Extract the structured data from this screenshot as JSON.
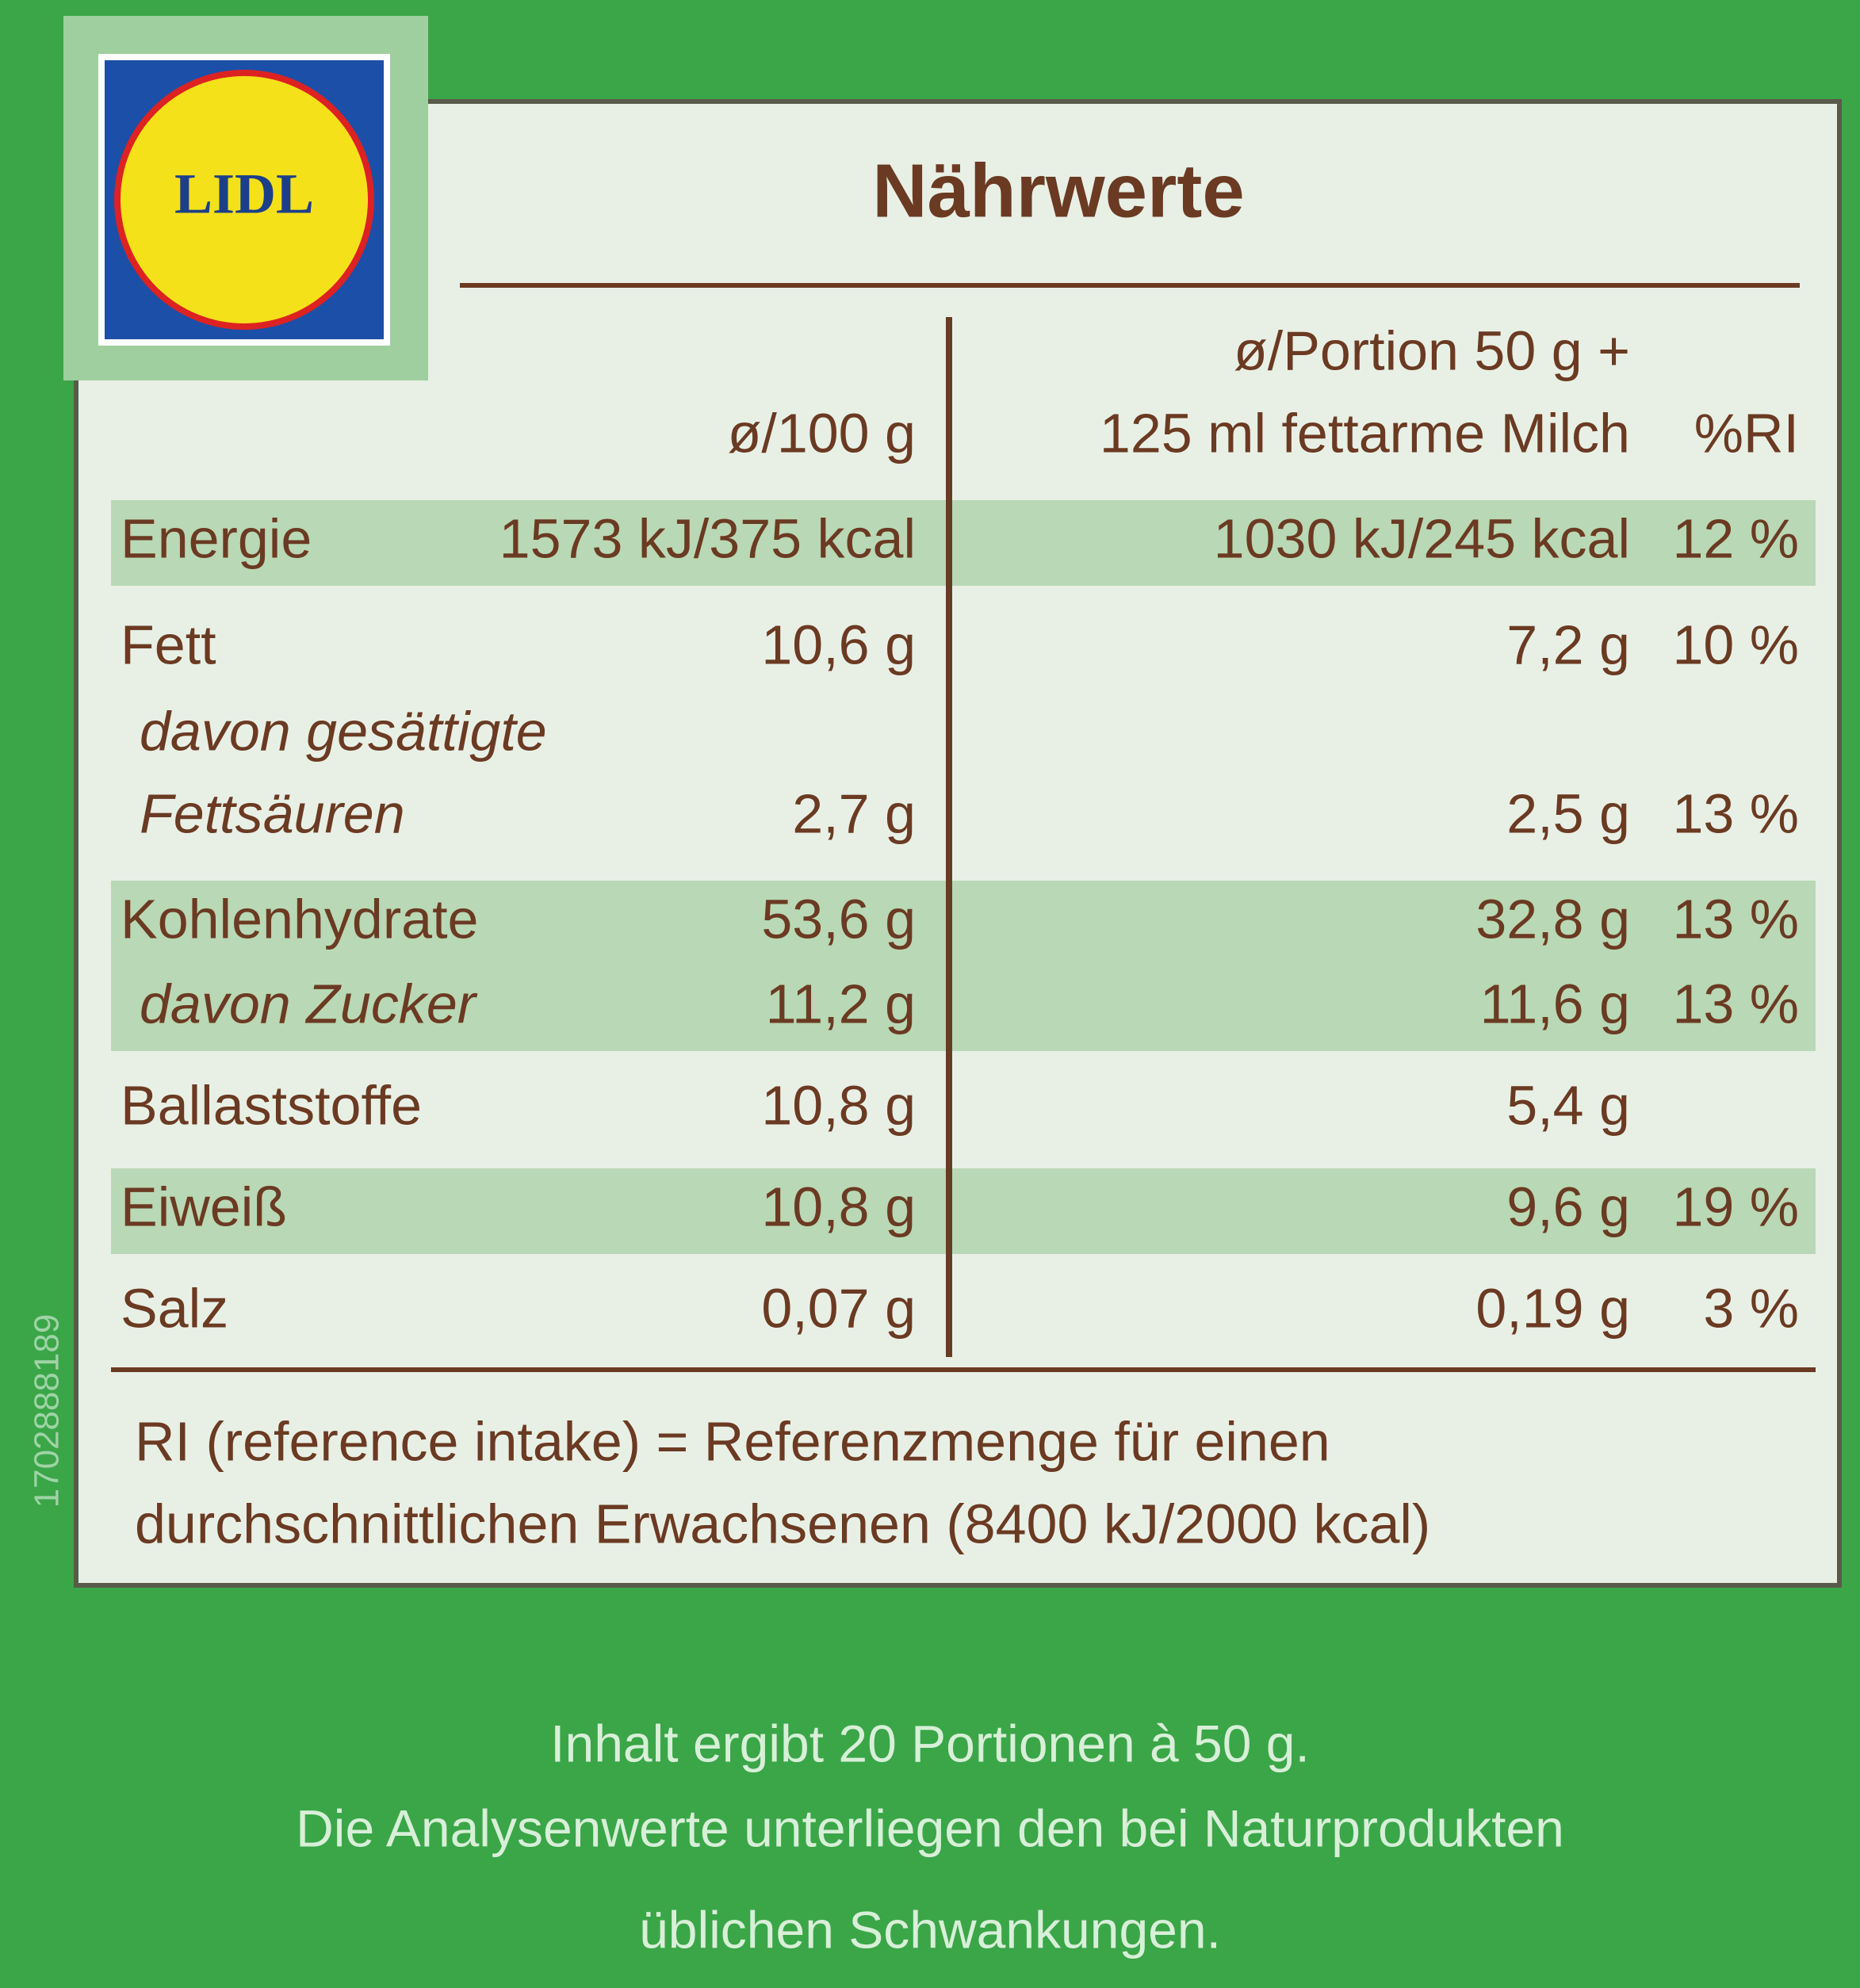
{
  "logo": "LIDL",
  "side_code": "1702888189",
  "title": "Nährwerte",
  "header": {
    "per_100g": "ø/100 g",
    "per_portion": [
      "ø/Portion 50 g +",
      "125 ml fettarme Milch"
    ],
    "ri": "%RI"
  },
  "rows": [
    {
      "label": [
        "Energie"
      ],
      "per_100g": "1573 kJ/375 kcal",
      "per_portion": "1030 kJ/245 kcal",
      "ri": "12 %",
      "shaded": true
    },
    {
      "label": [
        "Fett"
      ],
      "per_100g": "10,6 g",
      "per_portion": "7,2 g",
      "ri": "10 %",
      "shaded": false
    },
    {
      "label": [
        "davon gesättigte",
        "Fettsäuren"
      ],
      "italic": true,
      "per_100g": "2,7 g",
      "per_portion": "2,5 g",
      "ri": "13 %",
      "shaded": false
    },
    {
      "label": [
        "Kohlenhydrate"
      ],
      "per_100g": "53,6 g",
      "per_portion": "32,8 g",
      "ri": "13 %",
      "shaded": true
    },
    {
      "label": [
        "davon Zucker"
      ],
      "italic": true,
      "per_100g": "11,2 g",
      "per_portion": "11,6 g",
      "ri": "13 %",
      "shaded": true
    },
    {
      "label": [
        "Ballaststoffe"
      ],
      "per_100g": "10,8 g",
      "per_portion": "5,4 g",
      "shaded": false
    },
    {
      "label": [
        "Eiweiß"
      ],
      "per_100g": "10,8 g",
      "per_portion": "9,6 g",
      "ri": "19 %",
      "shaded": true
    },
    {
      "label": [
        "Salz"
      ],
      "per_100g": "0,07 g",
      "per_portion": "0,19 g",
      "ri": "3 %",
      "shaded": false
    }
  ],
  "footnote": [
    "RI (reference intake) = Referenzmenge für einen",
    "durchschnittlichen Erwachsenen (8400 kJ/2000 kcal)"
  ],
  "notes": [
    "Inhalt ergibt 20 Portionen à 50 g.",
    "Die Analysenwerte unterliegen den bei Naturprodukten",
    "üblichen Schwankungen."
  ]
}
